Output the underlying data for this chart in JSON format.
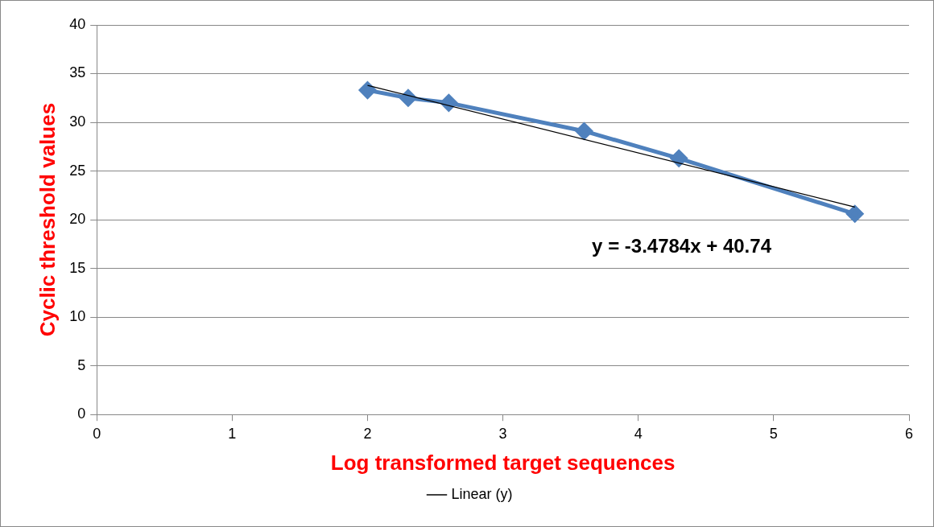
{
  "chart_data": {
    "type": "scatter",
    "xlabel": "Log transformed target sequences",
    "ylabel": "Cyclic threshold values",
    "xlim": [
      0,
      6
    ],
    "xticks": [
      0,
      1,
      2,
      3,
      4,
      5,
      6
    ],
    "ylim": [
      0,
      40
    ],
    "yticks": [
      0,
      5,
      10,
      15,
      20,
      25,
      30,
      35,
      40
    ],
    "grid": "y",
    "legend": "bottom",
    "marker": "diamond",
    "series": [
      {
        "type": "line",
        "color": "#4f81bd",
        "x": [
          2,
          2.3,
          2.6,
          3.6,
          4.3,
          5.6
        ],
        "values": [
          33.3,
          32.5,
          32.0,
          29.1,
          26.3,
          20.6
        ]
      },
      {
        "type": "line",
        "name": "Linear (y)",
        "color": "#000000",
        "marker": "none",
        "x": [
          2,
          5.6
        ],
        "values": [
          33.8,
          21.3
        ]
      }
    ],
    "annotations": [
      "y = -3.4784x + 40.74"
    ]
  }
}
